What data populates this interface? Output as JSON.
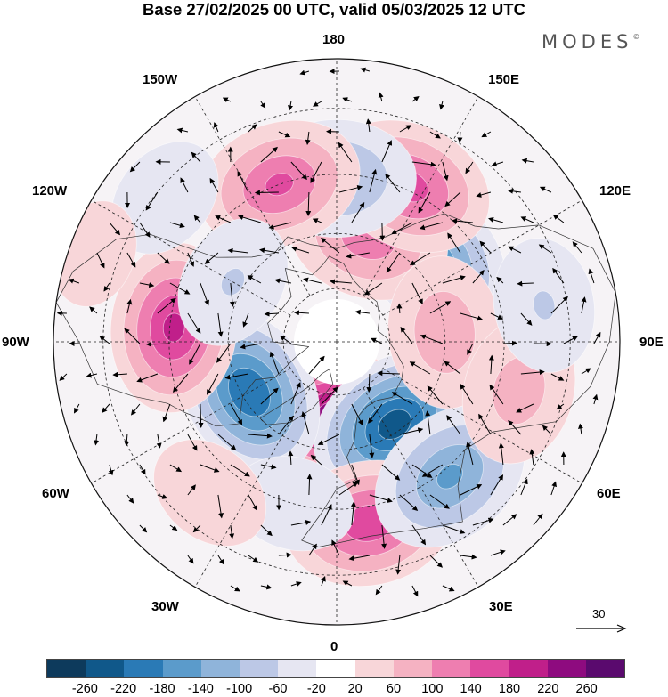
{
  "title": "Base 27/02/2025 00 UTC, valid 05/03/2025 12 UTC",
  "brand": "MODES",
  "brand_mark": "©",
  "longitude_labels": {
    "north": "180",
    "south": "0",
    "west": "90W",
    "east": "90E",
    "nw_upper": "150W",
    "ne_upper": "150E",
    "nw_lower": "120W",
    "ne_lower": "120E",
    "sw_upper": "60W",
    "se_upper": "60E",
    "sw_lower": "30W",
    "se_lower": "30E"
  },
  "reference_vector": {
    "value": "30"
  },
  "colorbar": {
    "colors": [
      "#0d3a5c",
      "#10588a",
      "#2a7ab6",
      "#5b9bcb",
      "#8fb4da",
      "#bcc8e6",
      "#e6e6f2",
      "#ffffff",
      "#f8d6d9",
      "#f5b2c2",
      "#ee7eb0",
      "#e04a9f",
      "#c01f8a",
      "#8e0b7f",
      "#5a0a6e"
    ],
    "labels": [
      "-260",
      "-220",
      "-180",
      "-140",
      "-100",
      "-60",
      "-20",
      "20",
      "60",
      "100",
      "140",
      "180",
      "220",
      "260"
    ]
  },
  "anomaly_centers": [
    {
      "lon": 0,
      "lat": 69,
      "value": 240
    },
    {
      "lon": 35,
      "lat": 62,
      "value": -230
    },
    {
      "lon": 300,
      "lat": 62,
      "value": -210
    },
    {
      "lon": 10,
      "lat": 41,
      "value": 160
    },
    {
      "lon": 40,
      "lat": 43,
      "value": -140
    },
    {
      "lon": 265,
      "lat": 46,
      "value": 180
    },
    {
      "lon": 130,
      "lat": 55,
      "value": -160
    },
    {
      "lon": 163,
      "lat": 60,
      "value": 120
    },
    {
      "lon": 155,
      "lat": 44,
      "value": 150
    },
    {
      "lon": 180,
      "lat": 46,
      "value": -110
    },
    {
      "lon": 200,
      "lat": 45,
      "value": 140
    },
    {
      "lon": 95,
      "lat": 60,
      "value": 90
    },
    {
      "lon": 75,
      "lat": 40,
      "value": 80
    },
    {
      "lon": 100,
      "lat": 35,
      "value": -60
    },
    {
      "lon": 230,
      "lat": 32,
      "value": -50
    },
    {
      "lon": 240,
      "lat": 57,
      "value": -60
    },
    {
      "lon": 345,
      "lat": 45,
      "value": -50
    },
    {
      "lon": 320,
      "lat": 38,
      "value": 50
    },
    {
      "lon": 250,
      "lat": 25,
      "value": 40
    }
  ]
}
